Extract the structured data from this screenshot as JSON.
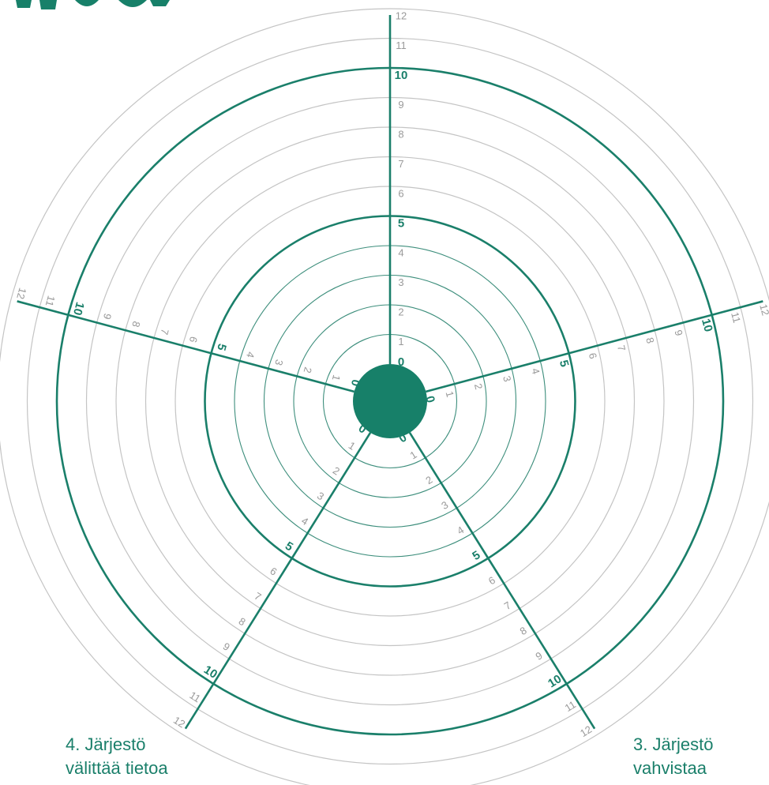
{
  "wheel": {
    "scale_max": 12,
    "major_rings": [
      5,
      10
    ],
    "axis_angles_deg": [
      -90,
      -15,
      58,
      122,
      195
    ],
    "colors": {
      "accent": "#1a7f6a",
      "center_fill": "#178069",
      "minor_ring": "#c4c4c4",
      "inner_ring": "#3d8e7c",
      "scale_text": "#9a9a9a"
    },
    "axes": [
      {
        "labels": [
          "0",
          "1",
          "2",
          "3",
          "4",
          "5",
          "6",
          "7",
          "8",
          "9",
          "10",
          "11",
          "12"
        ]
      },
      {
        "labels": [
          "0",
          "1",
          "2",
          "3",
          "4",
          "5",
          "6",
          "7",
          "8",
          "9",
          "10",
          "11",
          "12"
        ]
      },
      {
        "labels": [
          "0",
          "1",
          "2",
          "3",
          "4",
          "5",
          "6",
          "7",
          "8",
          "9",
          "10",
          "11",
          "12"
        ]
      },
      {
        "labels": [
          "0",
          "1",
          "2",
          "3",
          "4",
          "5",
          "6",
          "7",
          "8",
          "9",
          "10",
          "11",
          "12"
        ]
      },
      {
        "labels": [
          "0",
          "1",
          "2",
          "3",
          "4",
          "5",
          "6",
          "7",
          "8",
          "9",
          "10",
          "11",
          "12"
        ]
      }
    ]
  },
  "axis_titles": {
    "left": "4. Järjestö\nvälittää tietoa",
    "right": "3. Järjestö\nvahvistaa"
  }
}
